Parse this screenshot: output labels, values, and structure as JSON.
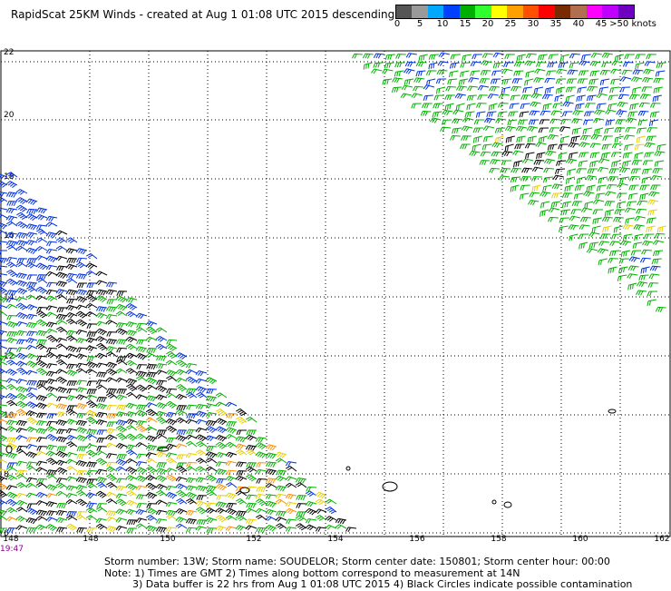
{
  "title": "RapidScat 25KM Winds - created at Aug  1 01:08 UTC 2015 descending",
  "legend": {
    "colors": [
      "#555555",
      "#9a9a9a",
      "#00a8ff",
      "#0040ff",
      "#00b000",
      "#30ff30",
      "#ffff00",
      "#ffa000",
      "#ff5000",
      "#ff0000",
      "#7a2a00",
      "#b07050",
      "#ff00ff",
      "#c000ff",
      "#7000c0"
    ],
    "ticks": [
      "0",
      "5",
      "10",
      "15",
      "20",
      "25",
      "30",
      "35",
      "40",
      "45",
      ">50 knots"
    ]
  },
  "map": {
    "lon_labels": [
      "148",
      "148",
      "150",
      "152",
      "154",
      "156",
      "158",
      "160",
      "162"
    ],
    "lat_labels": [
      "22",
      "20",
      "18",
      "16",
      "14",
      "12",
      "10",
      "8",
      "6"
    ],
    "colors": {
      "black": "#000000",
      "blue": "#0030e0",
      "green": "#00b000",
      "yellow": "#e8d000",
      "orange": "#ff9000",
      "red": "#ff2000"
    }
  },
  "time_label": "19:47",
  "footer": {
    "line1": "Storm number: 13W;  Storm name: SOUDELOR;  Storm center date: 150801;  Storm center hour: 00:00",
    "line2": "Note: 1) Times are GMT  2) Times along bottom correspond to measurement at 14N",
    "line3": "3) Data buffer is 22 hrs from Aug  1 01:08 UTC 2015   4) Black Circles indicate possible contamination"
  }
}
